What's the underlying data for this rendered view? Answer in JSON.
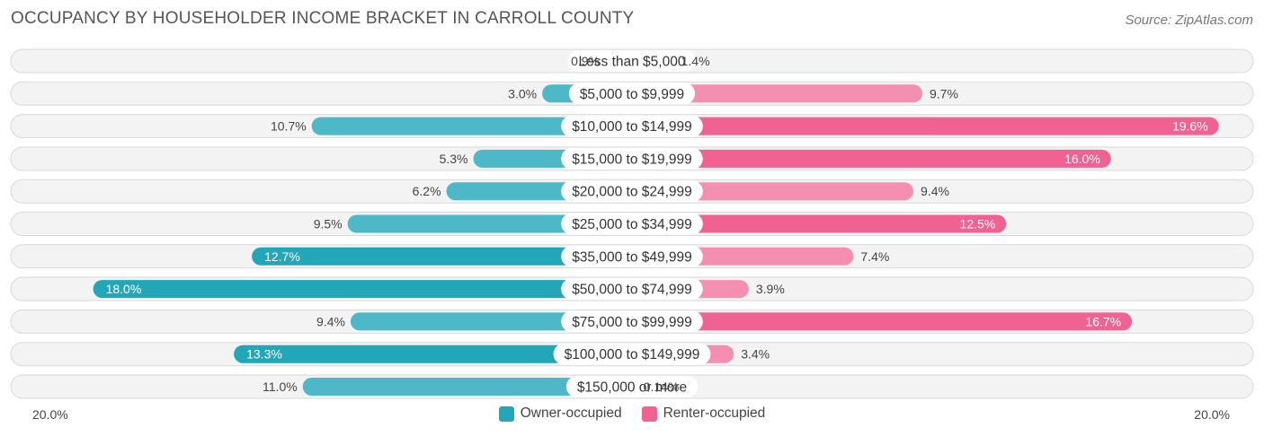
{
  "chart_data": {
    "type": "bar",
    "orientation": "horizontal-diverging",
    "title": "OCCUPANCY BY HOUSEHOLDER INCOME BRACKET IN CARROLL COUNTY",
    "source": "Source: ZipAtlas.com",
    "categories": [
      "Less than $5,000",
      "$5,000 to $9,999",
      "$10,000 to $14,999",
      "$15,000 to $19,999",
      "$20,000 to $24,999",
      "$25,000 to $34,999",
      "$35,000 to $49,999",
      "$50,000 to $74,999",
      "$75,000 to $99,999",
      "$100,000 to $149,999",
      "$150,000 or more"
    ],
    "series": [
      {
        "name": "Owner-occupied",
        "color": "#4db8c8",
        "color_strong": "#22a6b8",
        "values": [
          0.9,
          3.0,
          10.7,
          5.3,
          6.2,
          9.5,
          12.7,
          18.0,
          9.4,
          13.3,
          11.0
        ],
        "labels": [
          "0.9%",
          "3.0%",
          "10.7%",
          "5.3%",
          "6.2%",
          "9.5%",
          "12.7%",
          "18.0%",
          "9.4%",
          "13.3%",
          "11.0%"
        ]
      },
      {
        "name": "Renter-occupied",
        "color": "#f48fb1",
        "color_strong": "#f06292",
        "values": [
          1.4,
          9.7,
          19.6,
          16.0,
          9.4,
          12.5,
          7.4,
          3.9,
          16.7,
          3.4,
          0.14
        ],
        "labels": [
          "1.4%",
          "9.7%",
          "19.6%",
          "16.0%",
          "9.4%",
          "12.5%",
          "7.4%",
          "3.9%",
          "16.7%",
          "3.4%",
          "0.14%"
        ]
      }
    ],
    "xlim": [
      -20,
      20
    ],
    "axis_left_label": "20.0%",
    "axis_right_label": "20.0%",
    "legend": [
      "Owner-occupied",
      "Renter-occupied"
    ],
    "legend_position": "bottom-center"
  }
}
